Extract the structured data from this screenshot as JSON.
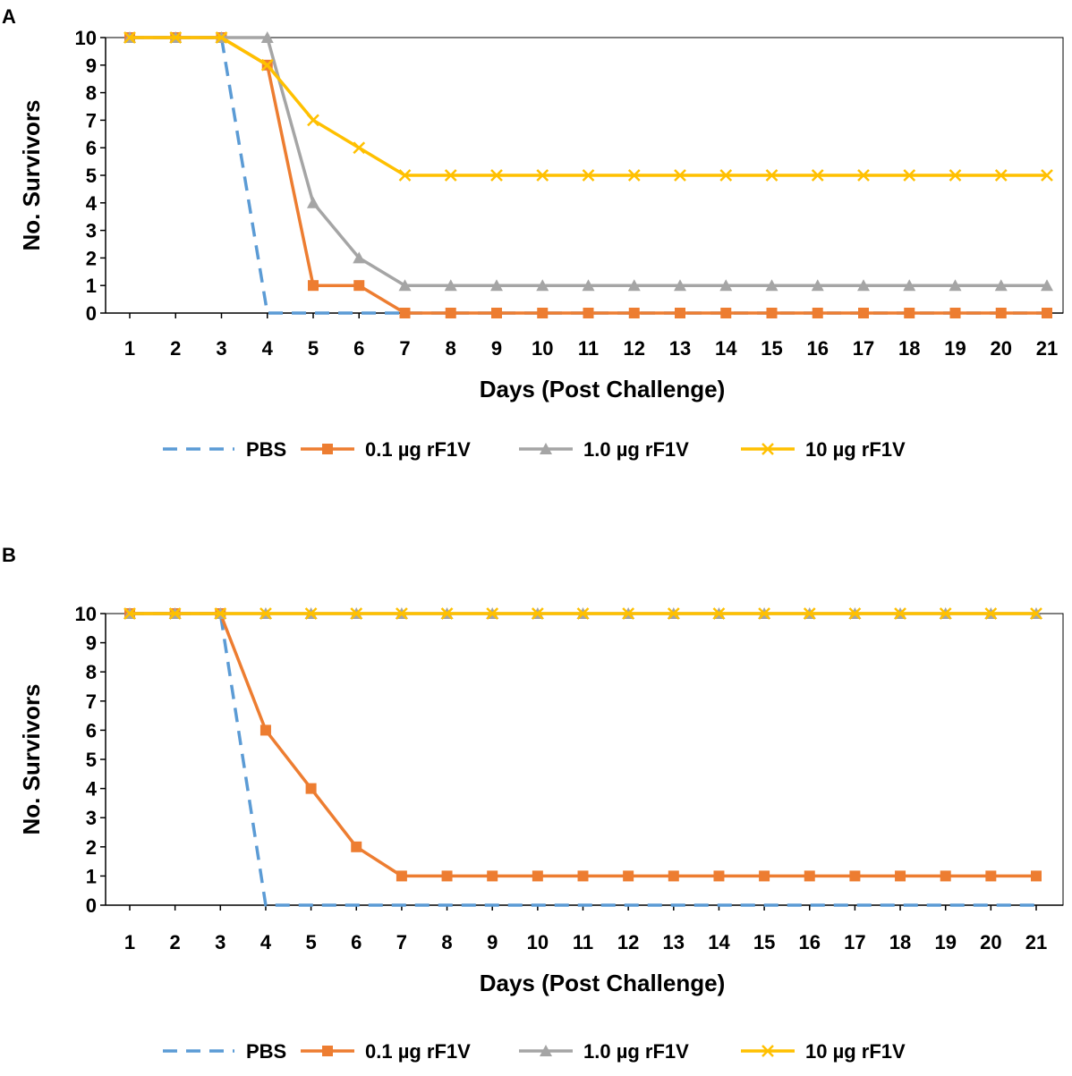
{
  "figure": {
    "panels": [
      {
        "label": "A"
      },
      {
        "label": "B"
      }
    ]
  },
  "chart_data": [
    {
      "type": "line",
      "panel": "A",
      "title": "",
      "xlabel": "Days (Post Challenge)",
      "ylabel": "No. Survivors",
      "x": [
        1,
        2,
        3,
        4,
        5,
        6,
        7,
        8,
        9,
        10,
        11,
        12,
        13,
        14,
        15,
        16,
        17,
        18,
        19,
        20,
        21
      ],
      "xlim": [
        1,
        21
      ],
      "ylim": [
        0,
        10
      ],
      "yticks": [
        0,
        1,
        2,
        3,
        4,
        5,
        6,
        7,
        8,
        9,
        10
      ],
      "legend_position": "bottom",
      "series": [
        {
          "name": "PBS",
          "color": "#5B9BD5",
          "style": "dashed",
          "marker": "none",
          "values": [
            10,
            10,
            10,
            0,
            0,
            0,
            0,
            0,
            0,
            0,
            0,
            0,
            0,
            0,
            0,
            0,
            0,
            0,
            0,
            0,
            0
          ]
        },
        {
          "name": "0.1 µg rF1V",
          "color": "#ED7D31",
          "style": "solid",
          "marker": "square",
          "values": [
            10,
            10,
            10,
            9,
            1,
            1,
            0,
            0,
            0,
            0,
            0,
            0,
            0,
            0,
            0,
            0,
            0,
            0,
            0,
            0,
            0
          ]
        },
        {
          "name": "1.0 µg rF1V",
          "color": "#A5A5A5",
          "style": "solid",
          "marker": "triangle",
          "values": [
            10,
            10,
            10,
            10,
            4,
            2,
            1,
            1,
            1,
            1,
            1,
            1,
            1,
            1,
            1,
            1,
            1,
            1,
            1,
            1,
            1
          ]
        },
        {
          "name": "10 µg rF1V",
          "color": "#FFC000",
          "style": "solid",
          "marker": "x",
          "values": [
            10,
            10,
            10,
            9,
            7,
            6,
            5,
            5,
            5,
            5,
            5,
            5,
            5,
            5,
            5,
            5,
            5,
            5,
            5,
            5,
            5
          ]
        }
      ]
    },
    {
      "type": "line",
      "panel": "B",
      "title": "",
      "xlabel": "Days (Post Challenge)",
      "ylabel": "No. Survivors",
      "x": [
        1,
        2,
        3,
        4,
        5,
        6,
        7,
        8,
        9,
        10,
        11,
        12,
        13,
        14,
        15,
        16,
        17,
        18,
        19,
        20,
        21
      ],
      "xlim": [
        1,
        21
      ],
      "ylim": [
        0,
        10
      ],
      "yticks": [
        0,
        1,
        2,
        3,
        4,
        5,
        6,
        7,
        8,
        9,
        10
      ],
      "legend_position": "bottom",
      "series": [
        {
          "name": "PBS",
          "color": "#5B9BD5",
          "style": "dashed",
          "marker": "none",
          "values": [
            10,
            10,
            10,
            0,
            0,
            0,
            0,
            0,
            0,
            0,
            0,
            0,
            0,
            0,
            0,
            0,
            0,
            0,
            0,
            0,
            0
          ]
        },
        {
          "name": "0.1 µg rF1V",
          "color": "#ED7D31",
          "style": "solid",
          "marker": "square",
          "values": [
            10,
            10,
            10,
            6,
            4,
            2,
            1,
            1,
            1,
            1,
            1,
            1,
            1,
            1,
            1,
            1,
            1,
            1,
            1,
            1,
            1
          ]
        },
        {
          "name": "1.0 µg rF1V",
          "color": "#A5A5A5",
          "style": "solid",
          "marker": "triangle",
          "values": [
            10,
            10,
            10,
            10,
            10,
            10,
            10,
            10,
            10,
            10,
            10,
            10,
            10,
            10,
            10,
            10,
            10,
            10,
            10,
            10,
            10
          ]
        },
        {
          "name": "10 µg rF1V",
          "color": "#FFC000",
          "style": "solid",
          "marker": "x",
          "values": [
            10,
            10,
            10,
            10,
            10,
            10,
            10,
            10,
            10,
            10,
            10,
            10,
            10,
            10,
            10,
            10,
            10,
            10,
            10,
            10,
            10
          ]
        }
      ]
    }
  ]
}
